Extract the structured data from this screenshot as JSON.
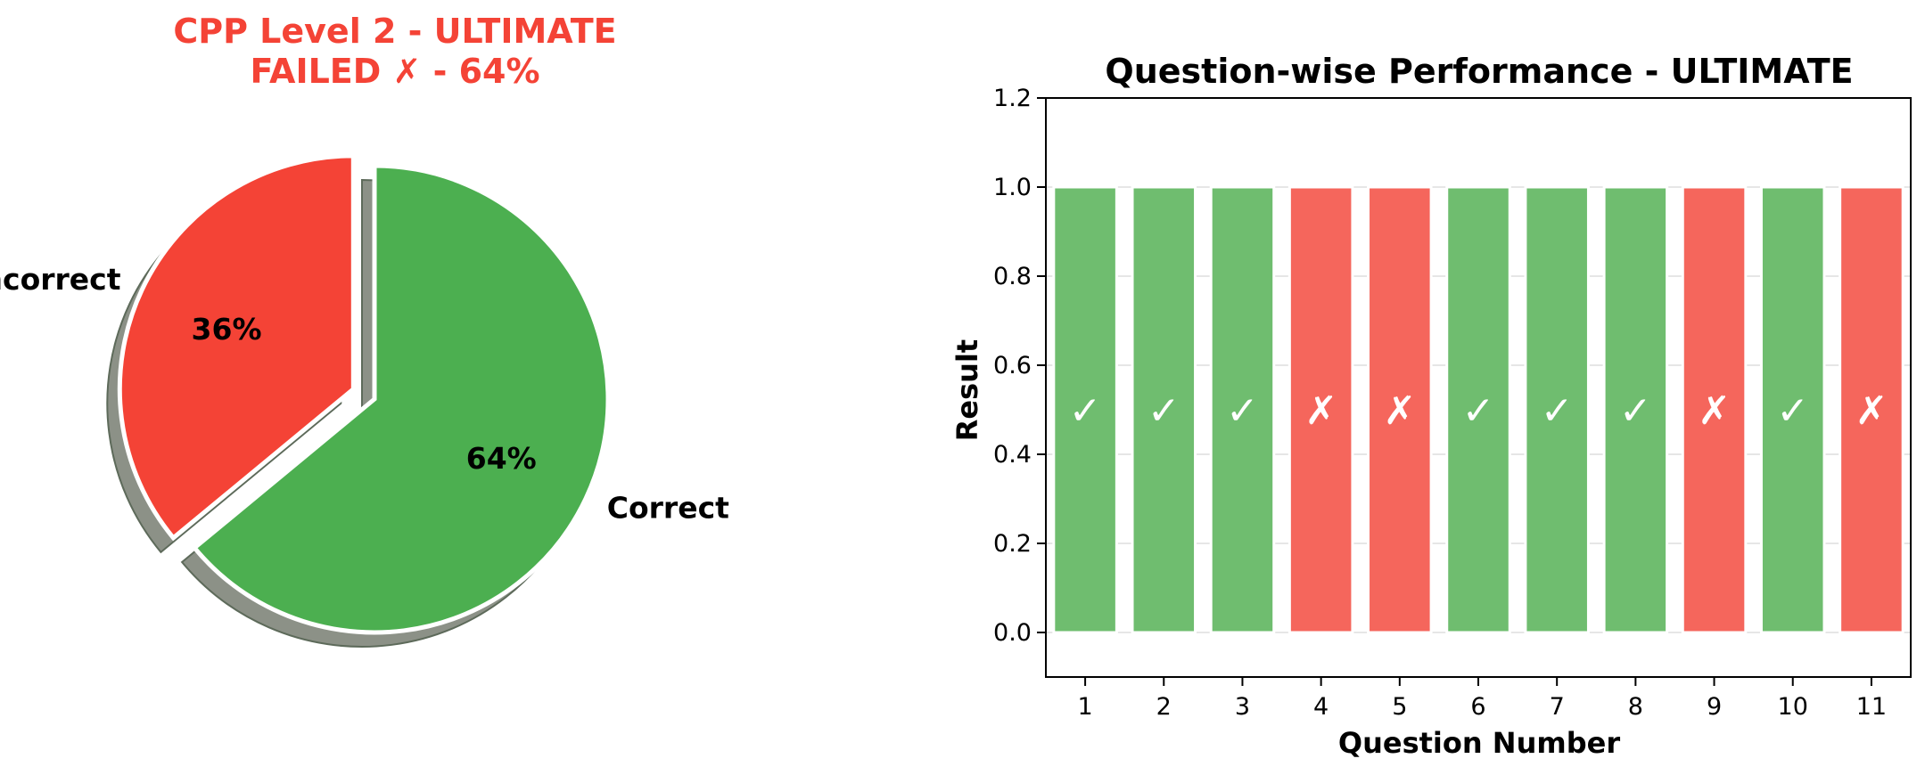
{
  "chart_data": [
    {
      "type": "pie",
      "title_line1": "CPP Level 2 - ULTIMATE",
      "title_line2": "FAILED ✗ - 64%",
      "title_color": "#f44336",
      "slices": [
        {
          "label": "Correct",
          "value": 64,
          "pct_label": "64%",
          "color": "#4caf50",
          "exploded": false
        },
        {
          "label": "Incorrect",
          "value": 36,
          "pct_label": "36%",
          "color": "#f44336",
          "exploded": true
        }
      ],
      "shadow": true
    },
    {
      "type": "bar",
      "title": "Question-wise Performance - ULTIMATE",
      "xlabel": "Question Number",
      "ylabel": "Result",
      "ylim": [
        -0.1,
        1.2
      ],
      "yticks": [
        "0.0",
        "0.2",
        "0.4",
        "0.6",
        "0.8",
        "1.0",
        "1.2"
      ],
      "categories": [
        "1",
        "2",
        "3",
        "4",
        "5",
        "6",
        "7",
        "8",
        "9",
        "10",
        "11"
      ],
      "values": [
        1,
        1,
        1,
        1,
        1,
        1,
        1,
        1,
        1,
        1,
        1
      ],
      "results": [
        "correct",
        "correct",
        "correct",
        "incorrect",
        "incorrect",
        "correct",
        "correct",
        "correct",
        "incorrect",
        "correct",
        "incorrect"
      ],
      "marks": [
        "✓",
        "✓",
        "✓",
        "✗",
        "✗",
        "✓",
        "✓",
        "✓",
        "✗",
        "✓",
        "✗"
      ],
      "colors": {
        "correct": "#6fbd6f",
        "incorrect": "#f5665c"
      },
      "grid": true
    }
  ]
}
